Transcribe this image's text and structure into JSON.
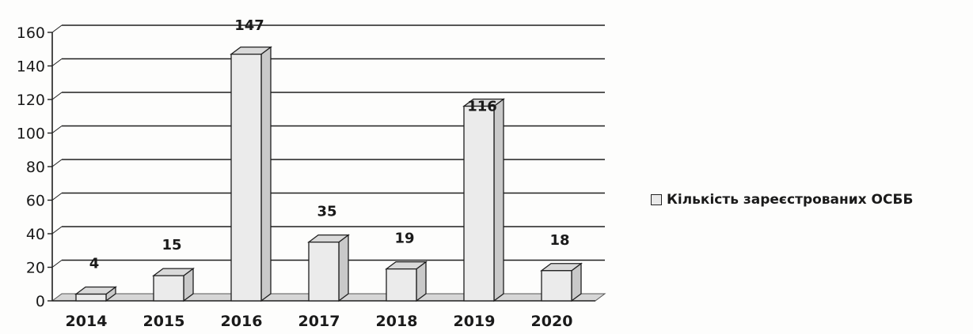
{
  "chart_data": {
    "type": "bar",
    "categories": [
      "2014",
      "2015",
      "2016",
      "2017",
      "2018",
      "2019",
      "2020"
    ],
    "series": [
      {
        "name": "Кількість зареєстрованих ОСББ",
        "values": [
          4,
          15,
          147,
          35,
          19,
          116,
          18
        ]
      }
    ],
    "data_labels": [
      "4",
      "15",
      "147",
      "35",
      "19",
      "116",
      "18"
    ],
    "y_ticks": [
      "0",
      "20",
      "40",
      "60",
      "80",
      "100",
      "120",
      "140",
      "160"
    ],
    "ylim": [
      0,
      160
    ],
    "grid": true,
    "three_d": true,
    "legend_position": "right",
    "colors": {
      "bar_face": "#ebebeb",
      "bar_side": "#c9c9c9",
      "bar_top": "#d9d9d9",
      "stroke": "#1f1f1f"
    }
  }
}
